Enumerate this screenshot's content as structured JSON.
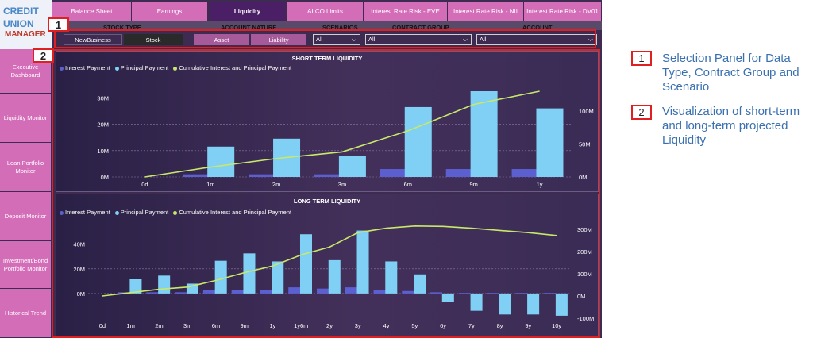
{
  "logo": {
    "line1": "CREDIT",
    "line2": "UNION",
    "line3": "MANAGER"
  },
  "tabs": [
    {
      "label": "Balance Sheet",
      "active": false
    },
    {
      "label": "Earnings",
      "active": false
    },
    {
      "label": "Liquidity",
      "active": true
    },
    {
      "label": "ALCO Limits",
      "active": false
    },
    {
      "label": "Interest Rate Risk - EVE",
      "active": false
    },
    {
      "label": "Interest Rate Risk - NII",
      "active": false
    },
    {
      "label": "Interest Rate Risk - DV01",
      "active": false
    }
  ],
  "filters": {
    "stock_type": {
      "header": "STOCK TYPE",
      "options": [
        "NewBusiness",
        "Stock"
      ],
      "selected": "Stock"
    },
    "account_nature": {
      "header": "ACCOUNT NATURE",
      "options": [
        "Asset",
        "Liability"
      ]
    },
    "scenarios": {
      "header": "SCENARIOS",
      "value": "All"
    },
    "contract_group": {
      "header": "CONTRACT GROUP",
      "value": "All"
    },
    "account": {
      "header": "ACCOUNT",
      "value": "All"
    }
  },
  "sidebar": {
    "items": [
      "Executive Dashboard",
      "Liquidity Monitor",
      "Loan Portfolio Monitor",
      "Deposit Monitor",
      "Investment/Bond Portfolio Monitor",
      "Historical Trend"
    ]
  },
  "colors": {
    "interest": "#5b5fd0",
    "principal": "#7fd0f4",
    "cumulative": "#c8e86a",
    "accent": "#d46db8"
  },
  "legend": {
    "interest": "Interest Payment",
    "principal": "Principal Payment",
    "cumulative": "Cumulative Interest and Principal Payment"
  },
  "chart_data": [
    {
      "type": "bar",
      "title": "SHORT TERM LIQUIDITY",
      "categories": [
        "0d",
        "1m",
        "2m",
        "3m",
        "6m",
        "9m",
        "1y"
      ],
      "series": [
        {
          "name": "Interest Payment",
          "values": [
            0,
            1,
            1,
            1,
            3,
            3,
            3
          ]
        },
        {
          "name": "Principal Payment",
          "values": [
            0,
            11.5,
            14.5,
            8,
            26.5,
            32.5,
            26
          ]
        },
        {
          "name": "Cumulative Interest and Principal Payment",
          "axis": "right",
          "values": [
            0,
            15,
            28,
            38,
            70,
            110,
            130
          ]
        }
      ],
      "y_ticks": [
        "0M",
        "10M",
        "20M",
        "30M"
      ],
      "y2_ticks": [
        "0M",
        "50M",
        "100M"
      ],
      "ylim": [
        0,
        32.5
      ],
      "y2lim": [
        0,
        130
      ]
    },
    {
      "type": "bar",
      "title": "LONG TERM LIQUIDITY",
      "categories": [
        "0d",
        "1m",
        "2m",
        "3m",
        "6m",
        "9m",
        "1y",
        "1y6m",
        "2y",
        "3y",
        "4y",
        "5y",
        "6y",
        "7y",
        "8y",
        "9y",
        "10y"
      ],
      "series": [
        {
          "name": "Interest Payment",
          "values": [
            0,
            1,
            1,
            1,
            3,
            3,
            3,
            5,
            4,
            5,
            3,
            2,
            1,
            0.5,
            0.5,
            0.5,
            0.5
          ]
        },
        {
          "name": "Principal Payment",
          "values": [
            0,
            11.5,
            14.5,
            8,
            26.5,
            32.5,
            26,
            48,
            27,
            51,
            26,
            15.5,
            -7,
            -14,
            -17,
            -17,
            -18
          ]
        },
        {
          "name": "Cumulative Interest and Principal Payment",
          "axis": "right",
          "values": [
            0,
            15,
            30,
            40,
            70,
            105,
            135,
            185,
            220,
            285,
            305,
            315,
            313,
            305,
            295,
            285,
            272
          ]
        }
      ],
      "y_ticks": [
        "0M",
        "20M",
        "40M"
      ],
      "y2_ticks": [
        "-100M",
        "0M",
        "100M",
        "200M",
        "300M"
      ],
      "ylim": [
        -20,
        52
      ],
      "y2lim": [
        -100,
        300
      ]
    }
  ],
  "annotations": [
    {
      "num": "1",
      "text": "Selection Panel for Data Type, Contract Group and Scenario"
    },
    {
      "num": "2",
      "text": "Visualization of short-term and long-term projected Liquidity"
    }
  ]
}
